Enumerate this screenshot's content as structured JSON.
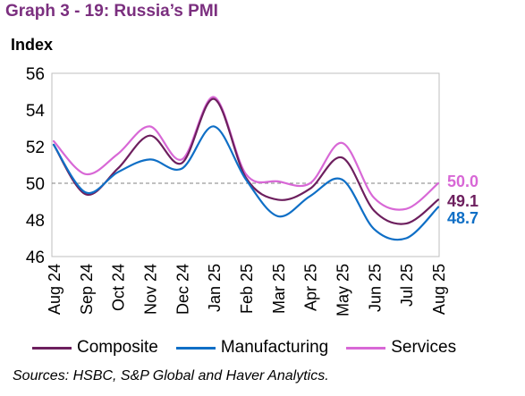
{
  "title": "Graph 3 - 19: Russia’s PMI",
  "source": "Sources: HSBC, S&P Global and Haver Analytics.",
  "chart_data": {
    "type": "line",
    "ylabel": "Index",
    "ylim": [
      46,
      56
    ],
    "yticks": [
      46,
      48,
      50,
      52,
      54,
      56
    ],
    "grid": false,
    "reference_line": 50,
    "legend_position": "bottom",
    "categories": [
      "Aug 24",
      "Sep 24",
      "Oct 24",
      "Nov 24",
      "Dec 24",
      "Jan 25",
      "Feb 25",
      "Mar 25",
      "Apr 25",
      "May 25",
      "Jun 25",
      "Jul 25",
      "Aug 25"
    ],
    "series": [
      {
        "name": "Composite",
        "color": "#6d1f5e",
        "values": [
          52.1,
          49.4,
          50.8,
          52.6,
          51.1,
          54.6,
          50.3,
          49.1,
          49.7,
          51.4,
          48.5,
          47.8,
          49.1
        ]
      },
      {
        "name": "Manufacturing",
        "color": "#0f6fc6",
        "values": [
          52.1,
          49.5,
          50.6,
          51.3,
          50.8,
          53.1,
          50.2,
          48.2,
          49.3,
          50.2,
          47.5,
          47.0,
          48.7
        ]
      },
      {
        "name": "Services",
        "color": "#d868d6",
        "values": [
          52.3,
          50.5,
          51.6,
          53.1,
          51.3,
          54.7,
          50.5,
          50.1,
          50.0,
          52.2,
          49.2,
          48.6,
          50.0
        ]
      }
    ],
    "end_labels": [
      {
        "series": "Services",
        "text": "50.0",
        "color": "#d868d6"
      },
      {
        "series": "Composite",
        "text": "49.1",
        "color": "#6d1f5e"
      },
      {
        "series": "Manufacturing",
        "text": "48.7",
        "color": "#0f6fc6"
      }
    ]
  }
}
